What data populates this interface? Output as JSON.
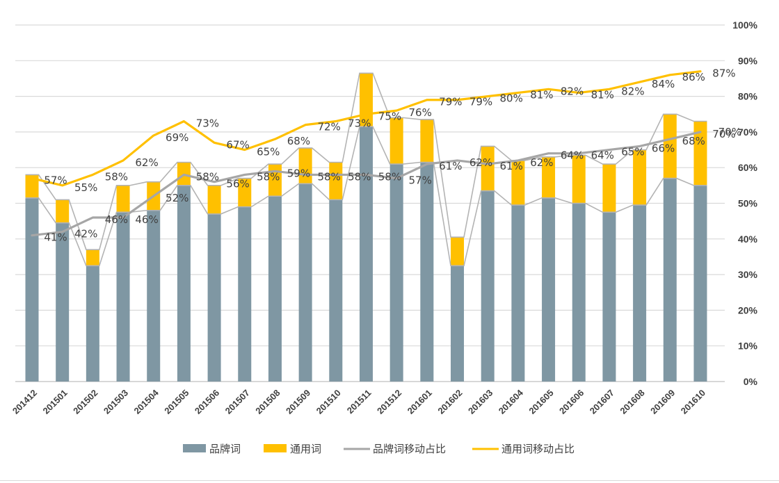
{
  "chart_data": {
    "type": "bar",
    "stacked": true,
    "title": "",
    "xlabel": "",
    "ylabel": "",
    "categories": [
      "201412",
      "201501",
      "201502",
      "201503",
      "201504",
      "201505",
      "201506",
      "201507",
      "201508",
      "201509",
      "201510",
      "201511",
      "201512",
      "201601",
      "201602",
      "201603",
      "201604",
      "201605",
      "201606",
      "201607",
      "201608",
      "201609",
      "201610"
    ],
    "ylim": [
      0,
      100
    ],
    "y_ticks": [
      "0%",
      "10%",
      "20%",
      "30%",
      "40%",
      "50%",
      "60%",
      "70%",
      "80%",
      "90%",
      "100%"
    ],
    "right_axis_label_overlap": "70%",
    "series": [
      {
        "name": "品牌词",
        "kind": "bar",
        "color": "#7f97a3",
        "values": [
          51.5,
          44.5,
          32.5,
          47.5,
          48,
          55,
          47,
          49,
          52,
          55.5,
          51,
          71.5,
          61,
          61.5,
          32.5,
          53.5,
          49.5,
          51.5,
          50,
          47.5,
          49.5,
          57,
          55
        ]
      },
      {
        "name": "通用词",
        "kind": "bar",
        "color": "#ffc000",
        "values": [
          6.5,
          6.5,
          4.5,
          7.5,
          8,
          6.5,
          8,
          8,
          9,
          10,
          10.5,
          15,
          13,
          12,
          8,
          12.5,
          12.5,
          11.5,
          13.5,
          13.5,
          15.5,
          18,
          18
        ]
      },
      {
        "name": "品牌词移动占比",
        "kind": "line",
        "color": "#a6a6a6",
        "values": [
          41,
          42,
          46,
          46,
          52,
          58,
          56,
          58,
          59,
          58,
          58,
          58,
          57,
          61,
          62,
          61,
          62,
          64,
          64,
          65,
          66,
          68,
          70
        ],
        "labels": [
          "41%",
          "42%",
          "46%",
          "46%",
          "52%",
          "58%",
          "56%",
          "58%",
          "59%",
          "58%",
          "58%",
          "58%",
          "57%",
          "61%",
          "62%",
          "61%",
          "62%",
          "64%",
          "64%",
          "65%",
          "66%",
          "68%",
          "70%"
        ]
      },
      {
        "name": "通用词移动占比",
        "kind": "line",
        "color": "#ffc000",
        "values": [
          57,
          55,
          58,
          62,
          69,
          73,
          67,
          65,
          68,
          72,
          73,
          75,
          76,
          79,
          79,
          80,
          81,
          82,
          81,
          82,
          84,
          86,
          87
        ],
        "labels": [
          "57%",
          "55%",
          "58%",
          "62%",
          "69%",
          "73%",
          "67%",
          "65%",
          "68%",
          "72%",
          "73%",
          "75%",
          "76%",
          "79%",
          "79%",
          "80%",
          "81%",
          "82%",
          "81%",
          "82%",
          "84%",
          "86%",
          "87%"
        ]
      }
    ],
    "legend": {
      "position": "bottom-center",
      "items": [
        "品牌词",
        "通用词",
        "品牌词移动占比",
        "通用词移动占比"
      ]
    },
    "grid": true
  }
}
